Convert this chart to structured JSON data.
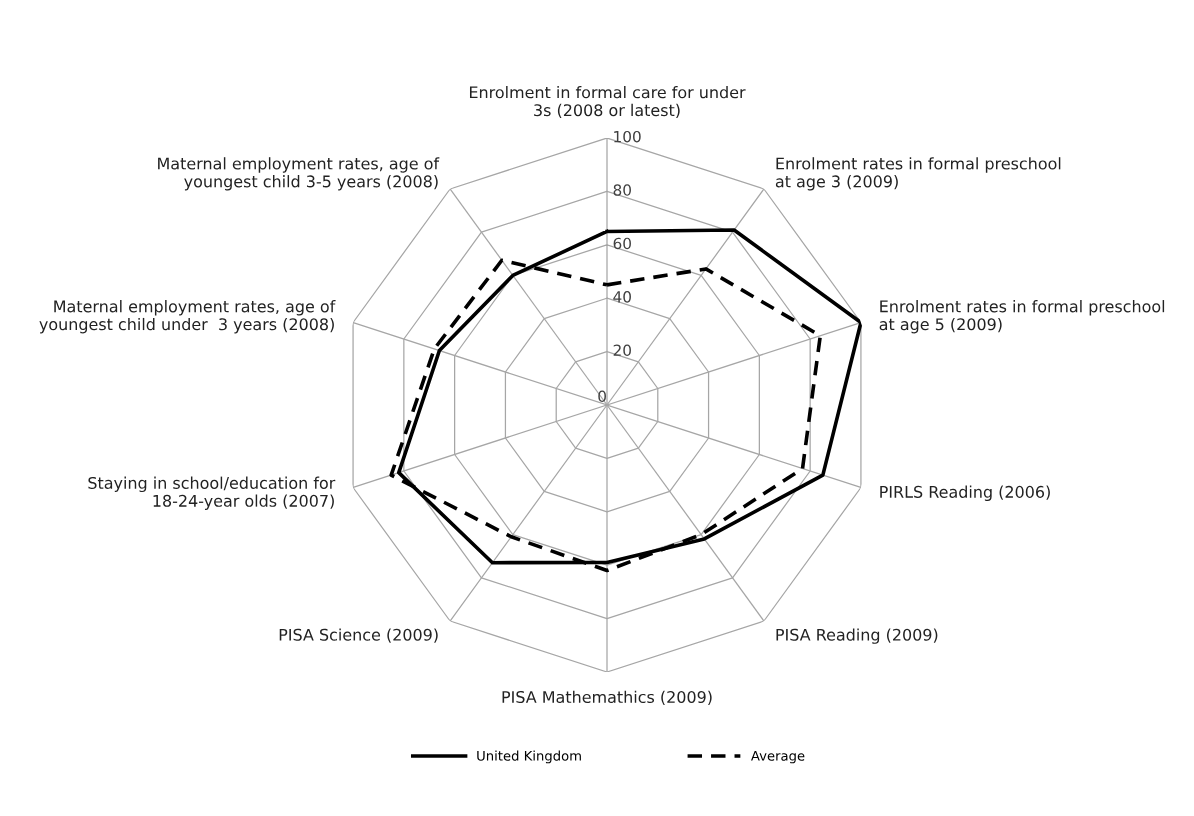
{
  "chart_data": {
    "type": "radar",
    "categories": [
      "Enrolment in formal care for under 3s (2008 or latest)",
      "Enrolment rates in formal preschool at age 3 (2009)",
      "Enrolment rates in formal preschool at age 5 (2009)",
      "PIRLS Reading (2006)",
      "PISA Reading (2009)",
      "PISA Mathemathics (2009)",
      "PISA Science (2009)",
      "Staying in school/education for 18-24-year olds (2007)",
      "Maternal employment rates, age of youngest child under  3 years (2008)",
      "Maternal employment rates, age of youngest child 3-5 years (2008)"
    ],
    "series": [
      {
        "name": "United Kingdom",
        "color": "#000000",
        "line_style": "solid",
        "values": [
          65,
          81,
          100,
          85,
          62,
          59,
          73,
          82,
          66,
          60
        ]
      },
      {
        "name": "Average",
        "color": "#000000",
        "line_style": "dashed",
        "values": [
          45,
          63,
          84,
          77,
          60,
          62,
          61,
          85,
          68,
          67
        ]
      }
    ],
    "ylim": [
      0,
      100
    ],
    "yticks": [
      0,
      20,
      40,
      60,
      80,
      100
    ],
    "grid": true,
    "legend": "bottom",
    "marker": "none"
  }
}
